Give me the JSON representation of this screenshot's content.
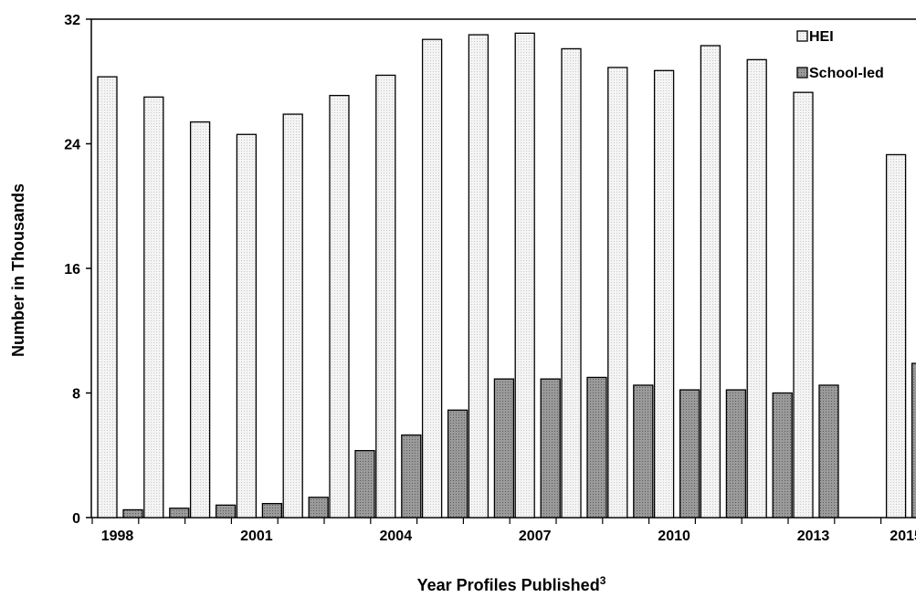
{
  "chart_data": {
    "type": "bar",
    "title": "",
    "xlabel": "Year Profiles Published",
    "xlabel_superscript": "3",
    "ylabel": "Number in Thousands",
    "ylim": [
      0,
      32
    ],
    "yticks": [
      0,
      8,
      16,
      24,
      32
    ],
    "x_tick_labels": [
      "1998",
      "2001",
      "2004",
      "2007",
      "2010",
      "2013",
      "2015"
    ],
    "categories": [
      "1998",
      "1999",
      "2000",
      "2001",
      "2002",
      "2003",
      "2004",
      "2005",
      "2006",
      "2007",
      "2008",
      "2009",
      "2010",
      "2011",
      "2012",
      "2013",
      "2014",
      "2015"
    ],
    "series": [
      {
        "name": "HEI",
        "color": "#f2f2f2",
        "values": [
          28.3,
          27.0,
          25.4,
          24.6,
          25.9,
          27.1,
          28.4,
          30.7,
          31.0,
          31.1,
          30.1,
          28.9,
          28.7,
          30.3,
          29.4,
          27.3,
          null,
          23.3
        ]
      },
      {
        "name": "School-led",
        "color": "#8a8a8a",
        "values": [
          0.5,
          0.6,
          0.8,
          0.9,
          1.3,
          4.3,
          5.3,
          6.9,
          8.9,
          8.9,
          9.0,
          8.5,
          8.2,
          8.2,
          8.0,
          8.5,
          null,
          9.9
        ]
      }
    ],
    "legend_position": "top-right",
    "grid": false
  }
}
